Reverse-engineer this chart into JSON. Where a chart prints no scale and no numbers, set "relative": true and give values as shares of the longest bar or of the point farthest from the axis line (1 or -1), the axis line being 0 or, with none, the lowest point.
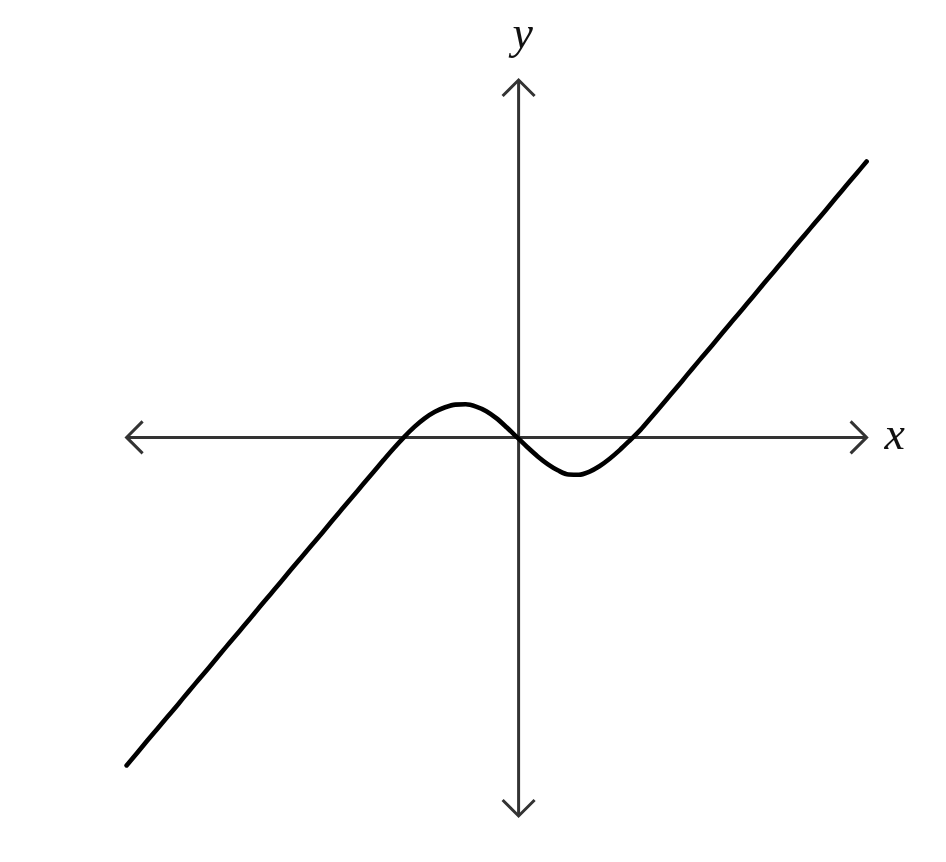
{
  "chart_data": {
    "type": "line",
    "xlabel": "x",
    "ylabel": "y",
    "relative": true,
    "categories": [
      null,
      null,
      null,
      null,
      null,
      null,
      null,
      null,
      null,
      null,
      null,
      null,
      null,
      null,
      null,
      null,
      null,
      null,
      null,
      null,
      null,
      null,
      null,
      null,
      null,
      null,
      null,
      null,
      null,
      null,
      null,
      null,
      null,
      null,
      null,
      null,
      null,
      null,
      null,
      null,
      null,
      null,
      null,
      null,
      null,
      null,
      null,
      null,
      null,
      null,
      null,
      null,
      null,
      null,
      null,
      null,
      null,
      null,
      null,
      null,
      null,
      null,
      null,
      null,
      null,
      null,
      null,
      null,
      null,
      null,
      null,
      null,
      null
    ],
    "series": [
      {
        "color": "#000000",
        "values": [
          -1.0,
          -0.963,
          -0.925,
          -0.888,
          -0.851,
          -0.814,
          -0.776,
          -0.739,
          -0.702,
          -0.664,
          -0.627,
          -0.59,
          -0.553,
          -0.515,
          -0.478,
          -0.441,
          -0.403,
          -0.366,
          -0.329,
          -0.292,
          -0.254,
          -0.217,
          -0.18,
          -0.143,
          -0.106,
          -0.069,
          -0.033,
          0.001,
          0.032,
          0.058,
          0.078,
          0.092,
          0.1,
          0.101,
          0.094,
          0.08,
          0.058,
          0.03,
          0.0,
          -0.03,
          -0.058,
          -0.082,
          -0.101,
          -0.113,
          -0.114,
          -0.105,
          -0.088,
          -0.065,
          -0.038,
          -0.008,
          0.023,
          0.059,
          0.096,
          0.133,
          0.17,
          0.208,
          0.245,
          0.282,
          0.32,
          0.357,
          0.394,
          0.431,
          0.469,
          0.506,
          0.543,
          0.581,
          0.618,
          0.655,
          0.692,
          0.73,
          0.767,
          0.804,
          0.841
        ]
      }
    ]
  }
}
